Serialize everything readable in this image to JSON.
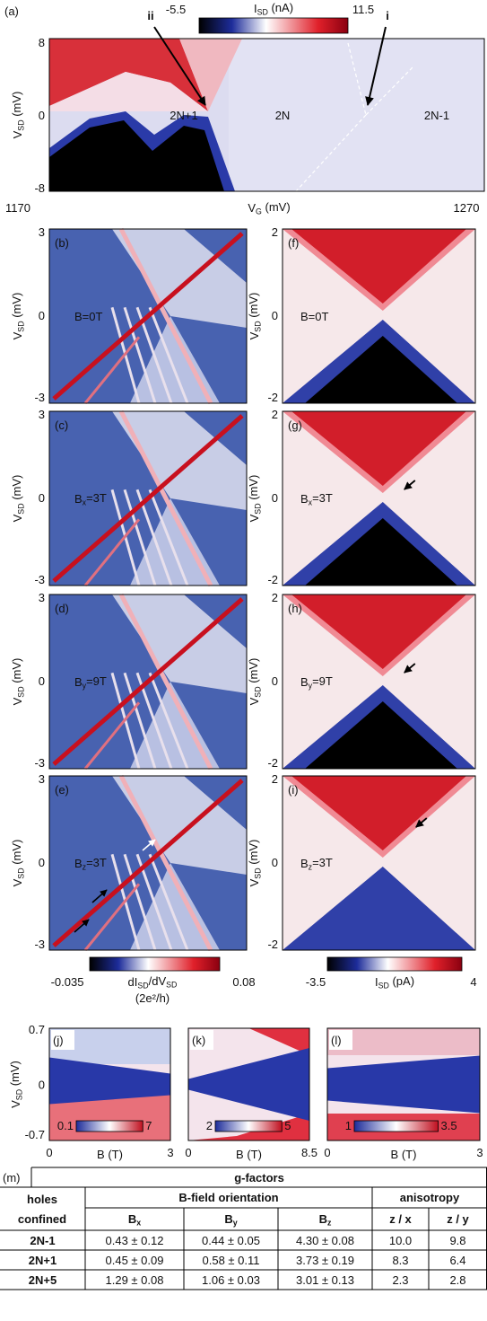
{
  "panel_a": {
    "label": "(a)",
    "ylabel": [
      {
        "text": "V"
      },
      {
        "sub": "SD"
      },
      {
        "text": " (mV)"
      }
    ],
    "yticks": [
      8,
      0,
      -8
    ],
    "xticks": [
      1170,
      1270
    ],
    "xlabel": [
      {
        "text": "V"
      },
      {
        "sub": "G"
      },
      {
        "text": " (mV)"
      }
    ],
    "colorbar": {
      "min": -5.5,
      "max": 11.5,
      "label": [
        {
          "text": "I"
        },
        {
          "sub": "SD"
        },
        {
          "text": " (nA)"
        }
      ]
    },
    "annotations": [
      "ii",
      "i"
    ],
    "regions": [
      "2N+1",
      "2N",
      "2N-1"
    ]
  },
  "left": [
    {
      "label": "(b)",
      "ylabel": [
        {
          "text": "V"
        },
        {
          "sub": "SD"
        },
        {
          "text": " (mV)"
        }
      ],
      "yticks": [
        3,
        0,
        -3
      ],
      "field": [
        {
          "text": "B=0T"
        }
      ]
    },
    {
      "label": "(c)",
      "ylabel": [
        {
          "text": "V"
        },
        {
          "sub": "SD"
        },
        {
          "text": " (mV)"
        }
      ],
      "yticks": [
        3,
        0,
        -3
      ],
      "field": [
        {
          "text": "B"
        },
        {
          "sub": "x"
        },
        {
          "text": "=3T"
        }
      ]
    },
    {
      "label": "(d)",
      "ylabel": [
        {
          "text": "V"
        },
        {
          "sub": "SD"
        },
        {
          "text": " (mV)"
        }
      ],
      "yticks": [
        3,
        0,
        -3
      ],
      "field": [
        {
          "text": "B"
        },
        {
          "sub": "y"
        },
        {
          "text": "=9T"
        }
      ]
    },
    {
      "label": "(e)",
      "ylabel": [
        {
          "text": "V"
        },
        {
          "sub": "SD"
        },
        {
          "text": " (mV)"
        }
      ],
      "yticks": [
        3,
        0,
        -3
      ],
      "field": [
        {
          "text": "B"
        },
        {
          "sub": "z"
        },
        {
          "text": "=3T"
        }
      ]
    }
  ],
  "right": [
    {
      "label": "(f)",
      "ylabel": [
        {
          "text": "V"
        },
        {
          "sub": "SD"
        },
        {
          "text": " (mV)"
        }
      ],
      "yticks": [
        2,
        0,
        -2
      ],
      "field": [
        {
          "text": "B=0T"
        }
      ]
    },
    {
      "label": "(g)",
      "ylabel": [
        {
          "text": "V"
        },
        {
          "sub": "SD"
        },
        {
          "text": " (mV)"
        }
      ],
      "yticks": [
        2,
        0,
        -2
      ],
      "field": [
        {
          "text": "B"
        },
        {
          "sub": "x"
        },
        {
          "text": "=3T"
        }
      ]
    },
    {
      "label": "(h)",
      "ylabel": [
        {
          "text": "V"
        },
        {
          "sub": "SD"
        },
        {
          "text": " (mV)"
        }
      ],
      "yticks": [
        2,
        0,
        -2
      ],
      "field": [
        {
          "text": "B"
        },
        {
          "sub": "y"
        },
        {
          "text": "=9T"
        }
      ]
    },
    {
      "label": "(i)",
      "ylabel": [
        {
          "text": "V"
        },
        {
          "sub": "SD"
        },
        {
          "text": " (mV)"
        }
      ],
      "yticks": [
        2,
        0,
        -2
      ],
      "field": [
        {
          "text": "B"
        },
        {
          "sub": "z"
        },
        {
          "text": "=3T"
        }
      ]
    }
  ],
  "colorbars": [
    {
      "min": -0.035,
      "max": 0.08,
      "label": [
        {
          "text": "dI"
        },
        {
          "sub": "SD"
        },
        {
          "text": "/dV"
        },
        {
          "sub": "SD"
        }
      ],
      "unit": "(2e²/h)"
    },
    {
      "min": -3.5,
      "max": 4,
      "label": [
        {
          "text": "I"
        },
        {
          "sub": "SD"
        },
        {
          "text": " (pA)"
        }
      ]
    }
  ],
  "bottom": {
    "ylabel": [
      {
        "text": "V"
      },
      {
        "sub": "SD"
      },
      {
        "text": " (mV)"
      }
    ],
    "yticks": [
      0.7,
      0,
      -0.7
    ],
    "panels": [
      {
        "label": "(j)",
        "xlabel": "B (T)",
        "xticks": [
          0,
          3
        ],
        "colorbar": [
          0.1,
          7
        ]
      },
      {
        "label": "(k)",
        "xlabel": "B (T)",
        "xticks": [
          0,
          8.5
        ],
        "colorbar": [
          2,
          5
        ]
      },
      {
        "label": "(l)",
        "xlabel": "B (T)",
        "xticks": [
          0,
          3
        ],
        "colorbar": [
          1,
          3.5
        ]
      }
    ]
  },
  "table": {
    "label": "(m)",
    "title": "g-factors",
    "row_header": [
      "holes",
      "confined"
    ],
    "group_headers": [
      "B-field orientation",
      "anisotropy"
    ],
    "columns": [
      [
        {
          "text": "B"
        },
        {
          "sub": "x"
        }
      ],
      [
        {
          "text": "B"
        },
        {
          "sub": "y"
        }
      ],
      [
        {
          "text": "B"
        },
        {
          "sub": "z"
        }
      ],
      [
        {
          "text": "z / x"
        }
      ],
      [
        {
          "text": "z / y"
        }
      ]
    ],
    "rows": [
      [
        "2N-1",
        "0.43 ± 0.12",
        "0.44 ± 0.05",
        "4.30 ± 0.08",
        "10.0",
        "9.8"
      ],
      [
        "2N+1",
        "0.45 ± 0.09",
        "0.58 ± 0.11",
        "3.73 ± 0.19",
        "8.3",
        "6.4"
      ],
      [
        "2N+5",
        "1.29 ± 0.08",
        "1.06 ± 0.03",
        "3.01 ± 0.13",
        "2.3",
        "2.8"
      ]
    ]
  }
}
